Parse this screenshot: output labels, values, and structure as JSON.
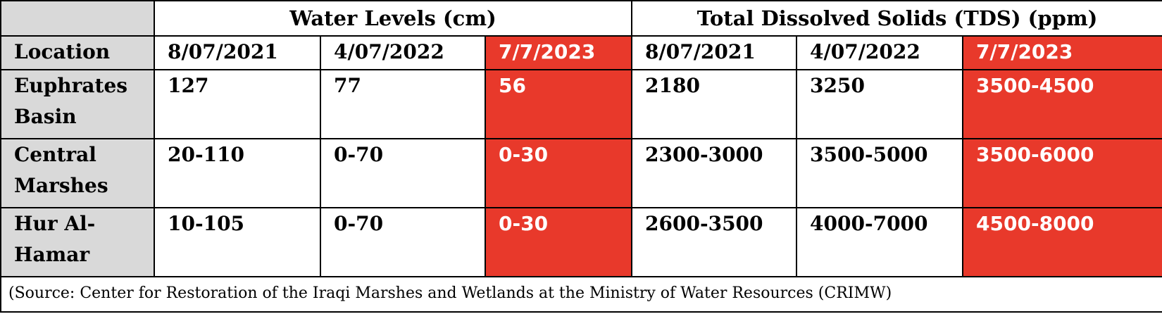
{
  "header": {
    "groups": [
      "",
      "Water Levels (cm)",
      "Total Dissolved Solids (TDS) (ppm)"
    ],
    "columns": [
      "Location",
      "8/07/2021",
      "4/07/2022",
      "7/7/2023",
      "8/07/2021",
      "4/07/2022",
      "7/7/2023"
    ]
  },
  "rows": [
    {
      "location": "Euphrates Basin",
      "wl_2021": "127",
      "wl_2022": "77",
      "wl_2023": "56",
      "tds_2021": "2180",
      "tds_2022": "3250",
      "tds_2023": "3500-4500"
    },
    {
      "location": "Central Marshes",
      "wl_2021": "20-110",
      "wl_2022": "0-70",
      "wl_2023": "0-30",
      "tds_2021": "2300-3000",
      "tds_2022": "3500-5000",
      "tds_2023": "3500-6000"
    },
    {
      "location": "Hur Al-Hamar",
      "wl_2021": "10-105",
      "wl_2022": "0-70",
      "wl_2023": "0-30",
      "tds_2021": "2600-3500",
      "tds_2022": "4000-7000",
      "tds_2023": "4500-8000"
    }
  ],
  "source": "(Source: Center for Restoration of the Iraqi Marshes and Wetlands at the Ministry of Water Resources (CRIMW)",
  "colors": {
    "highlight": "#e8392b",
    "label_column": "#d9d9d9",
    "border": "#000000"
  }
}
